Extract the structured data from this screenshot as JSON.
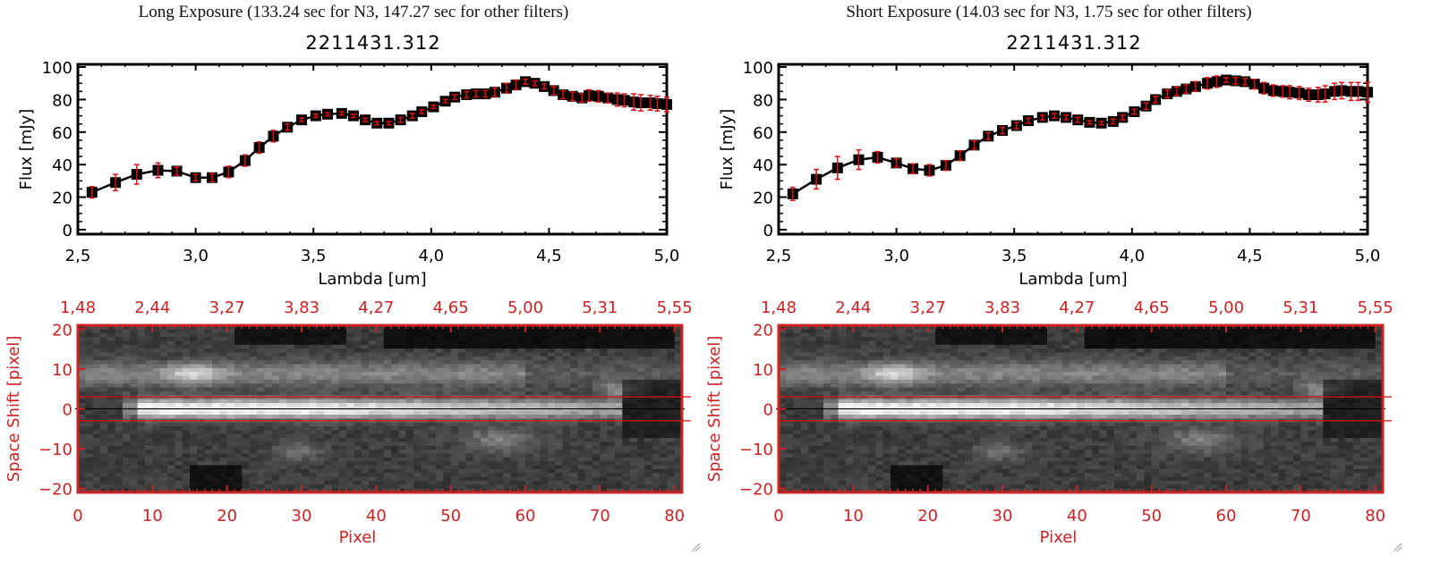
{
  "panels": [
    {
      "title": "Long Exposure (133.24 sec for N3, 147.27 sec for other filters)",
      "object_id": "2211431.312"
    },
    {
      "title": "Short Exposure (14.03 sec for N3, 1.75 sec for other filters)",
      "object_id": "2211431.312"
    }
  ],
  "colors": {
    "line": "#000000",
    "errorbar": "#e01010",
    "image_axis": "#cc2222",
    "aperture_line": "#dd1111"
  },
  "chart_data": [
    {
      "type": "line",
      "title": "2211431.312",
      "xlabel": "Lambda [um]",
      "ylabel": "Flux [mJy]",
      "xlim": [
        2.5,
        5.0
      ],
      "ylim": [
        0,
        100
      ],
      "xticks": [
        "2.5",
        "3.0",
        "3.5",
        "4.0",
        "4.5",
        "5.0"
      ],
      "yticks": [
        "0",
        "20",
        "40",
        "60",
        "80",
        "100"
      ],
      "series": [
        {
          "name": "Long Exposure",
          "x": [
            2.56,
            2.66,
            2.75,
            2.84,
            2.92,
            3.0,
            3.07,
            3.14,
            3.21,
            3.27,
            3.33,
            3.39,
            3.45,
            3.51,
            3.56,
            3.62,
            3.67,
            3.72,
            3.77,
            3.82,
            3.87,
            3.92,
            3.96,
            4.01,
            4.06,
            4.1,
            4.15,
            4.19,
            4.23,
            4.27,
            4.32,
            4.36,
            4.4,
            4.44,
            4.48,
            4.52,
            4.56,
            4.6,
            4.64,
            4.67,
            4.71,
            4.75,
            4.79,
            4.82,
            4.86,
            4.89,
            4.93,
            4.96,
            5.0
          ],
          "y": [
            23,
            29,
            34,
            36.5,
            36,
            32,
            32,
            35.5,
            42.5,
            50.5,
            57.5,
            63,
            67.5,
            70,
            71,
            71.5,
            70,
            67.5,
            65.5,
            65.5,
            67.5,
            70,
            72.5,
            75.5,
            79,
            81.5,
            83,
            83.5,
            83.5,
            84.5,
            87,
            89,
            91,
            90,
            88,
            85.5,
            83,
            82,
            81,
            82.5,
            82,
            81,
            80,
            79.5,
            78.5,
            78,
            78,
            77.5,
            77
          ],
          "err": [
            3.5,
            5,
            6,
            4.5,
            2.5,
            2,
            2.5,
            3.5,
            3.5,
            3.5,
            3.5,
            2,
            1,
            1,
            1,
            1,
            1,
            1,
            1,
            1,
            1.5,
            1.5,
            1,
            1,
            1,
            1.5,
            2,
            2,
            2,
            2.5,
            3,
            3,
            1.5,
            1.5,
            1.5,
            2.5,
            2.5,
            2.5,
            2.5,
            3.5,
            3.5,
            3,
            4,
            4,
            5,
            5,
            4.5,
            4.5,
            4.5
          ]
        }
      ]
    },
    {
      "type": "line",
      "title": "2211431.312",
      "xlabel": "Lambda [um]",
      "ylabel": "Flux [mJy]",
      "xlim": [
        2.5,
        5.0
      ],
      "ylim": [
        0,
        100
      ],
      "xticks": [
        "2.5",
        "3.0",
        "3.5",
        "4.0",
        "4.5",
        "5.0"
      ],
      "yticks": [
        "0",
        "20",
        "40",
        "60",
        "80",
        "100"
      ],
      "series": [
        {
          "name": "Short Exposure",
          "x": [
            2.56,
            2.66,
            2.75,
            2.84,
            2.92,
            3.0,
            3.07,
            3.14,
            3.21,
            3.27,
            3.33,
            3.39,
            3.45,
            3.51,
            3.56,
            3.62,
            3.67,
            3.72,
            3.77,
            3.82,
            3.87,
            3.92,
            3.96,
            4.01,
            4.06,
            4.1,
            4.15,
            4.19,
            4.23,
            4.27,
            4.32,
            4.36,
            4.4,
            4.44,
            4.48,
            4.52,
            4.56,
            4.6,
            4.64,
            4.67,
            4.71,
            4.75,
            4.79,
            4.82,
            4.86,
            4.89,
            4.93,
            4.96,
            5.0
          ],
          "y": [
            22,
            31,
            38,
            43,
            44.5,
            41,
            37.5,
            36.5,
            39.5,
            45.5,
            52,
            57.5,
            61,
            64,
            67,
            69,
            70,
            69,
            67.5,
            66,
            65.5,
            66.5,
            69,
            72.5,
            76,
            80,
            83.5,
            85,
            86.5,
            88,
            90,
            91,
            92,
            91.5,
            91,
            89.5,
            87,
            85.5,
            85,
            84.5,
            84,
            83,
            83,
            83.5,
            85,
            85.5,
            85,
            85,
            84.5
          ],
          "err": [
            4,
            6,
            7,
            6,
            3.5,
            2.5,
            3,
            3.5,
            3,
            3,
            2.5,
            2,
            2,
            2,
            1.5,
            1.5,
            1.5,
            1.5,
            1.5,
            1,
            1,
            1.5,
            1.5,
            1.5,
            2,
            2,
            2.5,
            2.5,
            2.5,
            3,
            3.5,
            3.5,
            1.5,
            2,
            2,
            3,
            3.5,
            3.5,
            3.5,
            4,
            4,
            4,
            4.5,
            5,
            5,
            5,
            5.5,
            5.5,
            6
          ]
        }
      ]
    },
    {
      "type": "heatmap",
      "xlabel": "Pixel",
      "ylabel": "Space Shift [pixel]",
      "xlim": [
        0,
        81
      ],
      "ylim": [
        -21,
        21
      ],
      "xticks": [
        "0",
        "10",
        "20",
        "30",
        "40",
        "50",
        "60",
        "70",
        "80"
      ],
      "yticks": [
        "-20",
        "-10",
        "0",
        "10",
        "20"
      ],
      "top_xticks": [
        "1.48",
        "2.44",
        "3.27",
        "3.83",
        "4.27",
        "4.65",
        "5.00",
        "5.31",
        "5.55"
      ],
      "aperture": [
        -3,
        3
      ],
      "center": 0
    },
    {
      "type": "heatmap",
      "xlabel": "Pixel",
      "ylabel": "Space Shift [pixel]",
      "xlim": [
        0,
        81
      ],
      "ylim": [
        -21,
        21
      ],
      "xticks": [
        "0",
        "10",
        "20",
        "30",
        "40",
        "50",
        "60",
        "70",
        "80"
      ],
      "yticks": [
        "-20",
        "-10",
        "0",
        "10",
        "20"
      ],
      "top_xticks": [
        "1.48",
        "2.44",
        "3.27",
        "3.83",
        "4.27",
        "4.65",
        "5.00",
        "5.31",
        "5.55"
      ],
      "aperture": [
        -3,
        3
      ],
      "center": 0
    }
  ]
}
